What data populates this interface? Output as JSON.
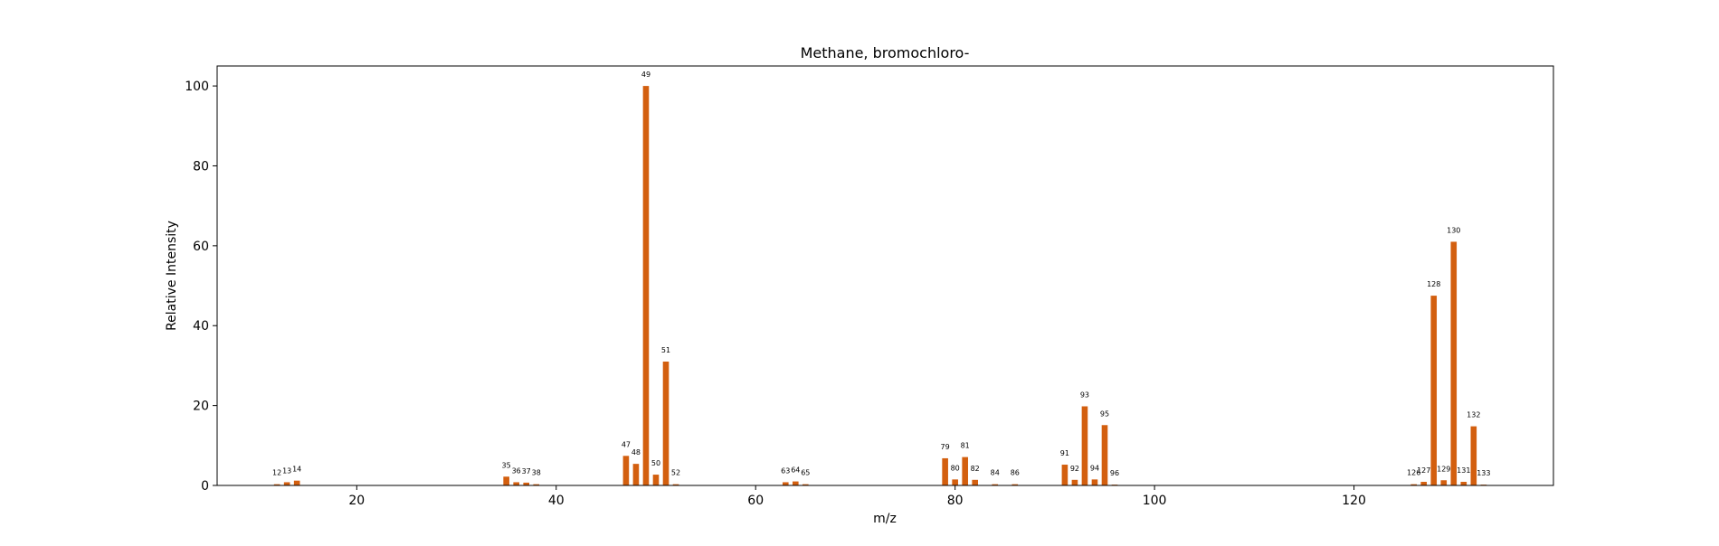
{
  "chart_data": {
    "type": "bar",
    "title": "Methane, bromochloro-",
    "xlabel": "m/z",
    "ylabel": "Relative Intensity",
    "xlim": [
      6,
      140
    ],
    "ylim": [
      0,
      105
    ],
    "xticks": [
      20,
      40,
      60,
      80,
      100,
      120
    ],
    "yticks": [
      0,
      20,
      40,
      60,
      80,
      100
    ],
    "grid": false,
    "bar_color": "#d35f0f",
    "series": [
      {
        "x": [
          12,
          13,
          14,
          35,
          36,
          37,
          38,
          47,
          48,
          49,
          50,
          51,
          52,
          63,
          64,
          65,
          79,
          80,
          81,
          82,
          84,
          86,
          91,
          92,
          93,
          94,
          95,
          96,
          126,
          127,
          128,
          129,
          130,
          131,
          132,
          133
        ],
        "values": [
          0.3,
          0.8,
          1.2,
          2.2,
          0.8,
          0.7,
          0.3,
          7.4,
          5.4,
          100,
          2.7,
          31,
          0.3,
          0.8,
          1.0,
          0.3,
          6.8,
          1.5,
          7.1,
          1.4,
          0.3,
          0.3,
          5.2,
          1.4,
          19.8,
          1.5,
          15.1,
          0.2,
          0.3,
          0.9,
          47.5,
          1.3,
          61,
          0.9,
          14.8,
          0.2
        ]
      }
    ]
  }
}
